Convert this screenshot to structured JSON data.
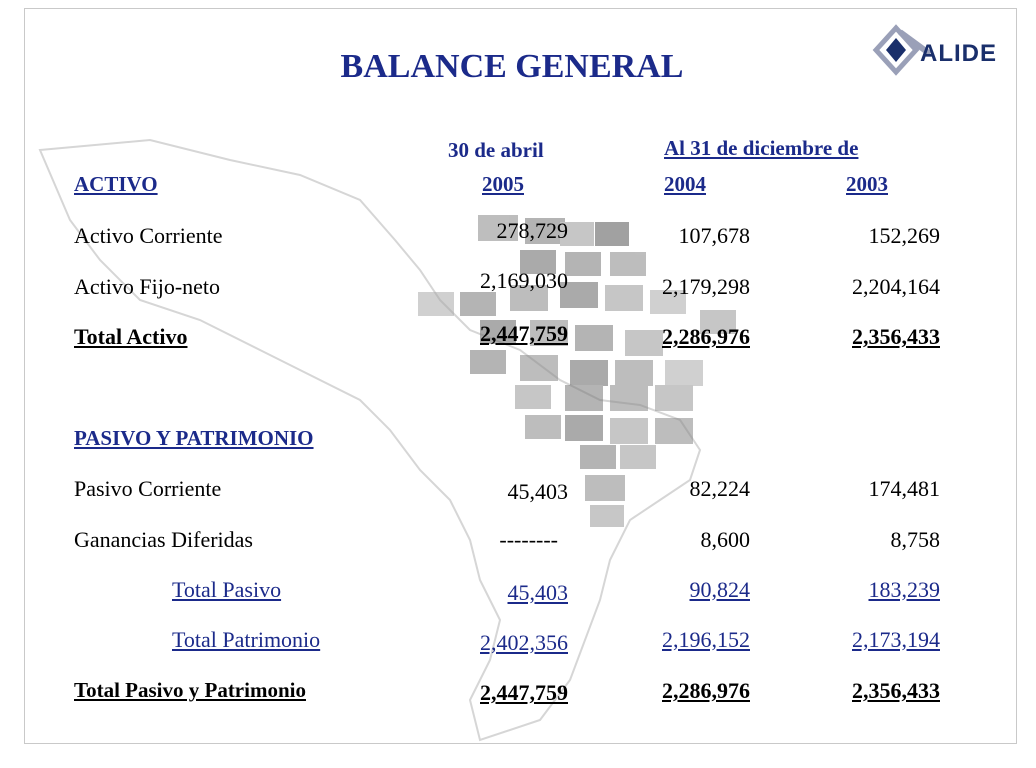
{
  "title": "BALANCE GENERAL",
  "logo": {
    "text": "ALIDE"
  },
  "headers": {
    "col1_top": "30 de abril",
    "col2_top": "Al 31 de diciembre de",
    "col1": "2005",
    "col2": "2004",
    "col3": "2003"
  },
  "sections": {
    "activo": "ACTIVO",
    "pasivo": "PASIVO Y PATRIMONIO"
  },
  "rows": [
    {
      "label": "Activo Corriente",
      "v2005": "278,729",
      "v2004": "107,678",
      "v2003": "152,269"
    },
    {
      "label": "Activo Fijo-neto",
      "v2005": "2,169,030",
      "v2004": "2,179,298",
      "v2003": "2,204,164"
    },
    {
      "label": "Total Activo",
      "v2005": "2,447,759",
      "v2004": "2,286,976",
      "v2003": "2,356,433"
    },
    {
      "label": "Pasivo Corriente",
      "v2005": "45,403",
      "v2004": "82,224",
      "v2003": "174,481"
    },
    {
      "label": "Ganancias Diferidas",
      "v2005": "--------",
      "v2004": "8,600",
      "v2003": "8,758"
    },
    {
      "label": "Total Pasivo",
      "v2005": "45,403",
      "v2004": "90,824",
      "v2003": "183,239"
    },
    {
      "label": "Total Patrimonio",
      "v2005": "2,402,356",
      "v2004": "2,196,152",
      "v2003": "2,173,194"
    },
    {
      "label": "Total Pasivo y Patrimonio",
      "v2005": "2,447,759",
      "v2004": "2,286,976",
      "v2003": "2,356,433"
    }
  ]
}
